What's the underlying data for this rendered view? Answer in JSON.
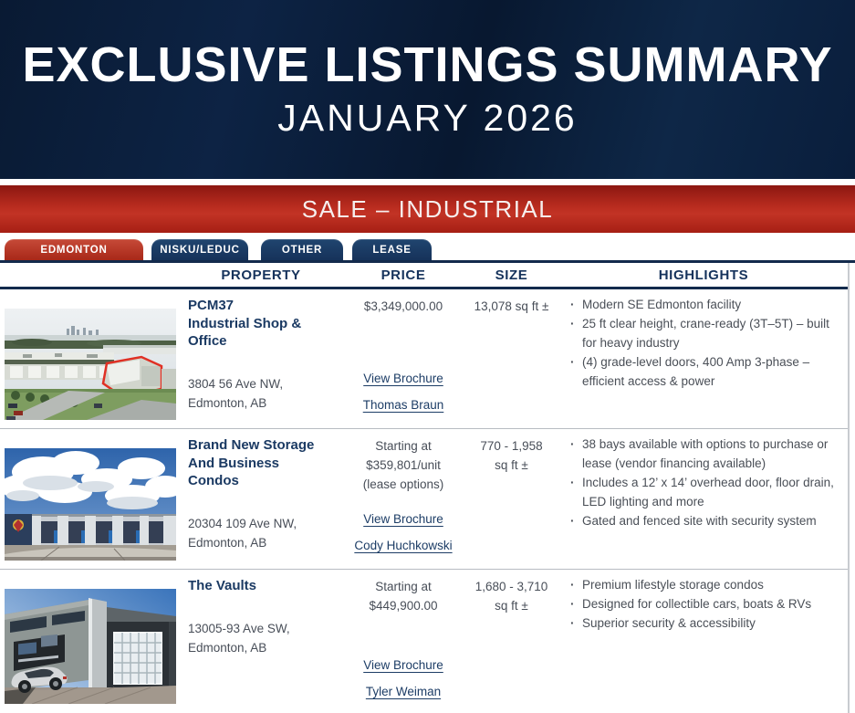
{
  "header": {
    "title": "EXCLUSIVE LISTINGS SUMMARY",
    "subtitle": "JANUARY 2026"
  },
  "section_banner": {
    "label": "SALE – INDUSTRIAL"
  },
  "tabs": [
    {
      "label": "EDMONTON",
      "active": true
    },
    {
      "label": "NISKU/LEDUC",
      "active": false
    },
    {
      "label": "OTHER",
      "active": false
    },
    {
      "label": "LEASE",
      "active": false
    }
  ],
  "colors": {
    "navy": "#0d2344",
    "red": "#b92c1f",
    "link_navy": "#1d3d66",
    "body_gray": "#484e58"
  },
  "table": {
    "columns": [
      "PROPERTY",
      "PRICE",
      "SIZE",
      "HIGHLIGHTS"
    ],
    "rows": [
      {
        "photo_alt": "aerial-view-of-industrial-park-with-red-outlined-building",
        "name": "PCM37\nIndustrial Shop &\nOffice",
        "address": "3804 56 Ave NW,\nEdmonton, AB",
        "price": "$3,349,000.00",
        "brochure_label": "View Brochure",
        "agent": "Thomas Braun",
        "size": "13,078 sq ft ±",
        "highlights": [
          "Modern SE Edmonton facility",
          "25 ft clear height, crane-ready (3T–5T) – built for heavy industry",
          "(4) grade-level doors, 400 Amp 3-phase – efficient access & power"
        ]
      },
      {
        "photo_alt": "storage-condo-building-under-large-cumulus-clouds",
        "name": "Brand New Storage\nAnd Business Condos",
        "address": "20304 109 Ave NW,\nEdmonton, AB",
        "price": "Starting at\n$359,801/unit\n(lease options)",
        "brochure_label": "View Brochure",
        "agent": "Cody Huchkowski",
        "size": "770 - 1,958\nsq ft ±",
        "highlights": [
          "38 bays available with options to purchase or lease (vendor financing available)",
          "Includes a 12’ x 14’ overhead door, floor drain, LED lighting and more",
          "Gated and fenced site with security system"
        ]
      },
      {
        "photo_alt": "modern-storage-condo-entrance-with-glass-overhead-door-and-sports-car",
        "name": "The Vaults",
        "address": "13005-93 Ave SW,\nEdmonton, AB",
        "price": "Starting at\n$449,900.00",
        "brochure_label": "View Brochure",
        "agent": "Tyler Weiman",
        "size": "1,680 - 3,710\nsq ft ±",
        "highlights": [
          "Premium lifestyle storage condos",
          "Designed for collectible cars, boats & RVs",
          "Superior security & accessibility"
        ]
      }
    ]
  }
}
